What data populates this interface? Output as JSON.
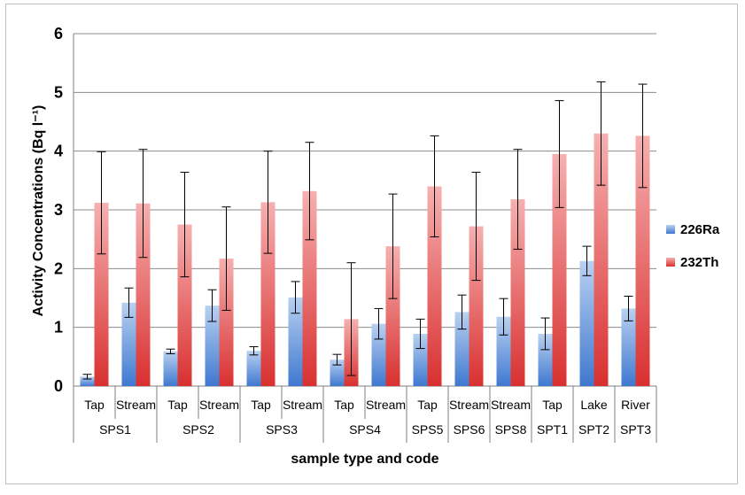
{
  "chart_data": {
    "type": "bar",
    "ylabel": "Activity Concentrations (Bq l⁻¹)",
    "xlabel": "sample type and code",
    "ylim": [
      0,
      6
    ],
    "yticks": [
      0,
      1,
      2,
      3,
      4,
      5,
      6
    ],
    "grid": true,
    "legend_position": "right",
    "categories": [
      "Tap",
      "Stream",
      "Tap",
      "Stream",
      "Tap",
      "Stream",
      "Tap",
      "Stream",
      "Tap",
      "Stream",
      "Stream",
      "Tap",
      "Lake",
      "River"
    ],
    "groups": [
      {
        "label": "SPS1",
        "span": 2
      },
      {
        "label": "SPS2",
        "span": 2
      },
      {
        "label": "SPS3",
        "span": 2
      },
      {
        "label": "SPS4",
        "span": 2
      },
      {
        "label": "SPS5",
        "span": 1
      },
      {
        "label": "SPS6",
        "span": 1
      },
      {
        "label": "SPS8",
        "span": 1
      },
      {
        "label": "SPT1",
        "span": 1
      },
      {
        "label": "SPT2",
        "span": 1
      },
      {
        "label": "SPT3",
        "span": 1
      }
    ],
    "series": [
      {
        "name": "226Ra",
        "color": "#4f81bd",
        "values": [
          0.16,
          1.42,
          0.59,
          1.37,
          0.6,
          1.51,
          0.45,
          1.06,
          0.89,
          1.26,
          1.18,
          0.89,
          2.13,
          1.32
        ],
        "errors": [
          0.04,
          0.25,
          0.04,
          0.27,
          0.07,
          0.27,
          0.09,
          0.26,
          0.25,
          0.29,
          0.31,
          0.27,
          0.25,
          0.21
        ]
      },
      {
        "name": "232Th",
        "color": "#e05555",
        "values": [
          3.12,
          3.11,
          2.75,
          2.17,
          3.13,
          3.32,
          1.14,
          2.38,
          3.4,
          2.72,
          3.18,
          3.95,
          4.3,
          4.26
        ],
        "errors": [
          0.87,
          0.92,
          0.89,
          0.88,
          0.87,
          0.83,
          0.96,
          0.89,
          0.86,
          0.92,
          0.85,
          0.91,
          0.88,
          0.88
        ]
      }
    ]
  }
}
